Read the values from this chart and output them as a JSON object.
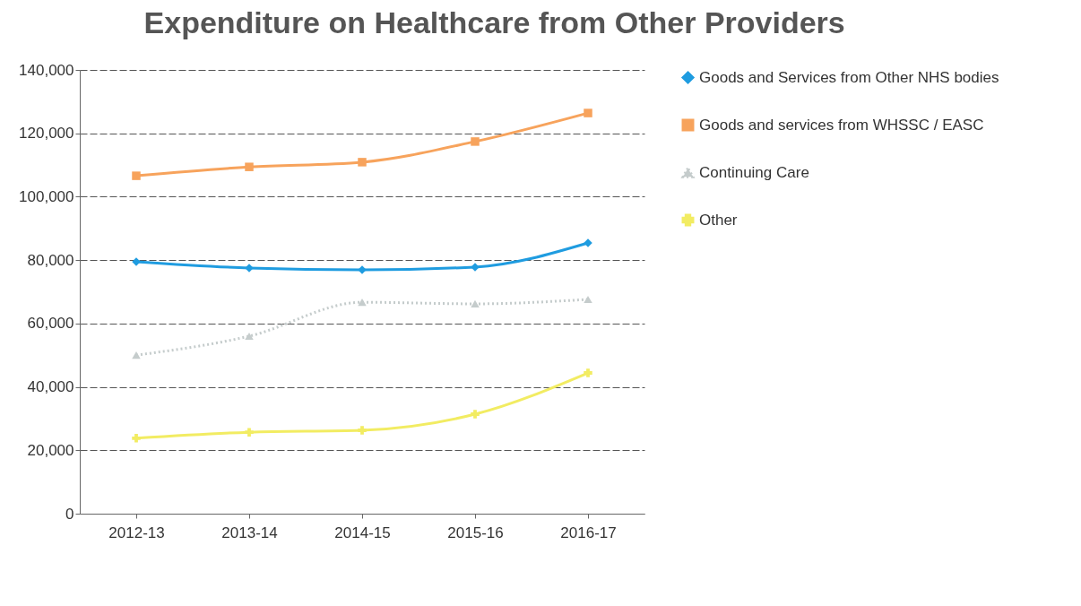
{
  "chart_data": {
    "type": "line",
    "title": "Expenditure on Healthcare from Other Providers",
    "categories": [
      "2012-13",
      "2013-14",
      "2014-15",
      "2015-16",
      "2016-17"
    ],
    "series": [
      {
        "name": "Goods and Services from Other NHS bodies",
        "color": "#1f9ce0",
        "marker": "diamond",
        "values": [
          79500,
          77500,
          76900,
          77800,
          85400
        ]
      },
      {
        "name": "Goods and services from WHSSC / EASC",
        "color": "#f7a35c",
        "marker": "square",
        "values": [
          106600,
          109400,
          110900,
          117400,
          126400
        ]
      },
      {
        "name": "Continuing Care",
        "color": "#c5cccc",
        "marker": "triangle",
        "line_style": "dotted",
        "values": [
          50000,
          56000,
          66700,
          66200,
          67600
        ]
      },
      {
        "name": "Other",
        "color": "#f2ec62",
        "marker": "cross",
        "values": [
          23800,
          25700,
          26300,
          31400,
          44400
        ]
      }
    ],
    "ylim": [
      0,
      140000
    ],
    "yticks": [
      0,
      {
        "value": 20000,
        "label": "20,000"
      },
      {
        "value": 40000,
        "label": "40,000"
      },
      {
        "value": 60000,
        "label": "60,000"
      },
      {
        "value": 80000,
        "label": "80,000"
      },
      {
        "value": 100000,
        "label": "100,000"
      },
      {
        "value": 120000,
        "label": "120,000"
      },
      {
        "value": 140000,
        "label": "140,000"
      }
    ],
    "grid": "y",
    "legend": "right"
  }
}
